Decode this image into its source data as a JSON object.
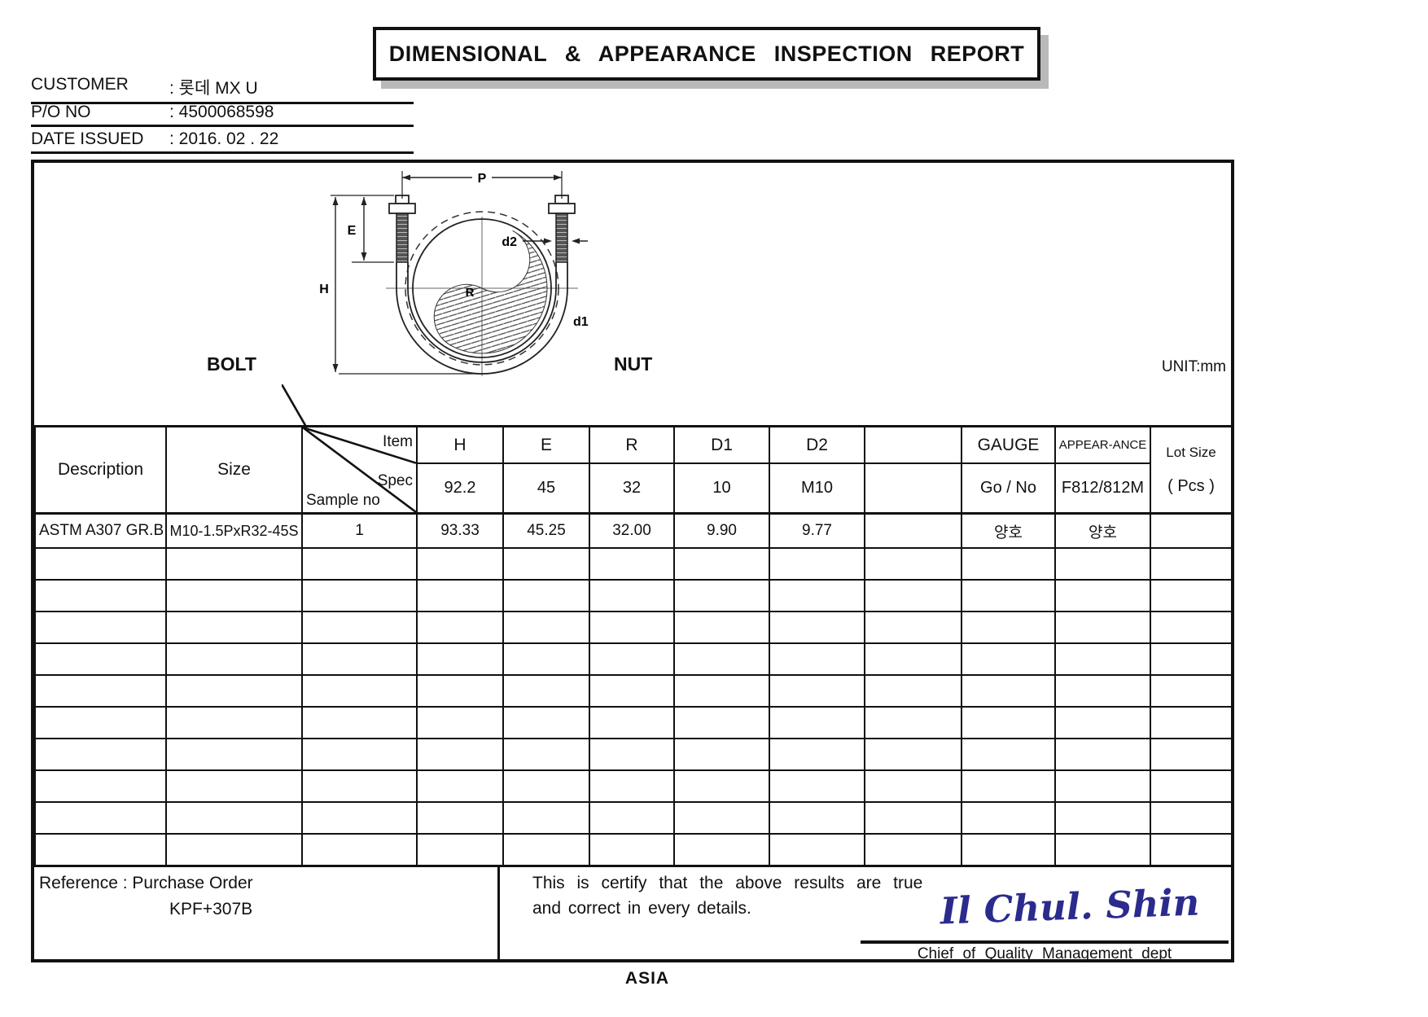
{
  "title": "DIMENSIONAL & APPEARANCE INSPECTION REPORT",
  "info": {
    "customer_label": "CUSTOMER",
    "customer_value": ": 롯데 MX U",
    "po_label": "P/O  NO",
    "po_value": ": 4500068598",
    "date_label": "DATE ISSUED",
    "date_value": ": 2016. 02 . 22"
  },
  "diagram": {
    "bolt_label": "BOLT",
    "nut_label": "NUT",
    "unit_label": "UNIT:mm",
    "dims": {
      "p": "P",
      "e": "E",
      "h": "H",
      "r": "R",
      "d1": "d1",
      "d2": "d2"
    }
  },
  "table": {
    "corner": {
      "item": "Item",
      "spec": "Spec",
      "sample": "Sample no"
    },
    "desc_header": "Description",
    "size_header": "Size",
    "item_headers": [
      "H",
      "E",
      "R",
      "D1",
      "D2",
      "",
      "GAUGE",
      "APPEAR-ANCE"
    ],
    "lot_header": "Lot  Size",
    "lot_sub": "( Pcs )",
    "spec_values": [
      "92.2",
      "45",
      "32",
      "10",
      "M10",
      "",
      "Go / No",
      "F812/812M"
    ],
    "data_row": {
      "description": "ASTM A307 GR.B",
      "size": "M10-1.5PxR32-45S",
      "sample_no": "1",
      "values": [
        "93.33",
        "45.25",
        "32.00",
        "9.90",
        "9.77",
        "",
        "양호",
        "양호"
      ],
      "lot": ""
    },
    "empty_row_count": 10
  },
  "footer": {
    "reference_line1": "Reference :  Purchase Order",
    "reference_line2": "KPF+307B",
    "certify_line1": "This is certify that the above results are true",
    "certify_line2": "and correct in every  details.",
    "signature": "Il Chul. Shin",
    "signature_color": "#2b2b8e",
    "chief_label": "Chief of Quality Management dept",
    "company": "ASIA"
  }
}
